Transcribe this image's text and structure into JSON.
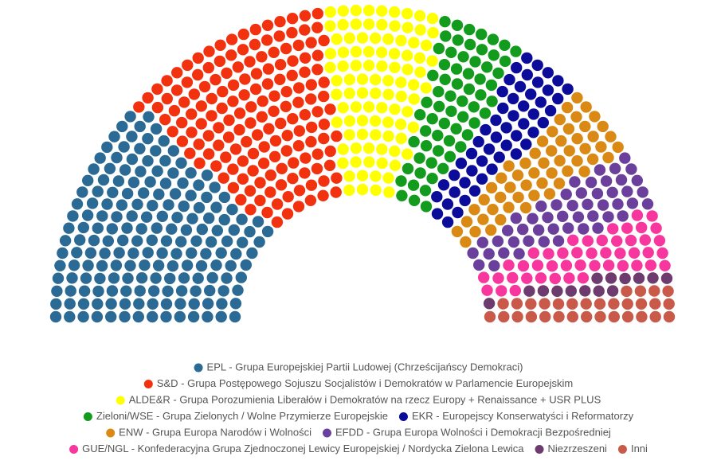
{
  "chart_data": {
    "type": "parliament",
    "series": [
      {
        "name": "EPL - Grupa Europejskiej Partii Ludowej (Chrześcijańscy Demokraci)",
        "color": "#2b6a94",
        "values": [
          183
        ]
      },
      {
        "name": "S&D - Grupa Postępowego Sojuszu Socjalistów i Demokratów w Parlamencie Europejskim",
        "color": "#f2310f",
        "values": [
          160
        ]
      },
      {
        "name": "ALDE&R - Grupa Porozumienia Liberałów i Demokratów na rzecz Europy + Renaissance + USR PLUS",
        "color": "#ffff00",
        "values": [
          95
        ]
      },
      {
        "name": "Zieloni/WSE - Grupa Zielonych / Wolne Przymierze Europejskie",
        "color": "#129b1c",
        "values": [
          65
        ]
      },
      {
        "name": "EKR - Europejscy Konserwatyści i Reformatorzy",
        "color": "#0c0c9a",
        "values": [
          52
        ]
      },
      {
        "name": "ENW - Grupa Europa Narodów i Wolności",
        "color": "#da8a14",
        "values": [
          55
        ]
      },
      {
        "name": "EFDD - Grupa Europa Wolności i Demokracji Bezpośredniej",
        "color": "#6b3f9c",
        "values": [
          50
        ]
      },
      {
        "name": "GUE/NGL - Konfederacyjna Grupa Zjednoczonej Lewicy Europejskiej / Nordycka Zielona Lewica",
        "color": "#f7369e",
        "values": [
          46
        ]
      },
      {
        "name": "Niezrzeszeni",
        "color": "#6e3b6e",
        "values": [
          14
        ]
      },
      {
        "name": "Inni",
        "color": "#c95a4a",
        "values": [
          31
        ]
      }
    ]
  }
}
